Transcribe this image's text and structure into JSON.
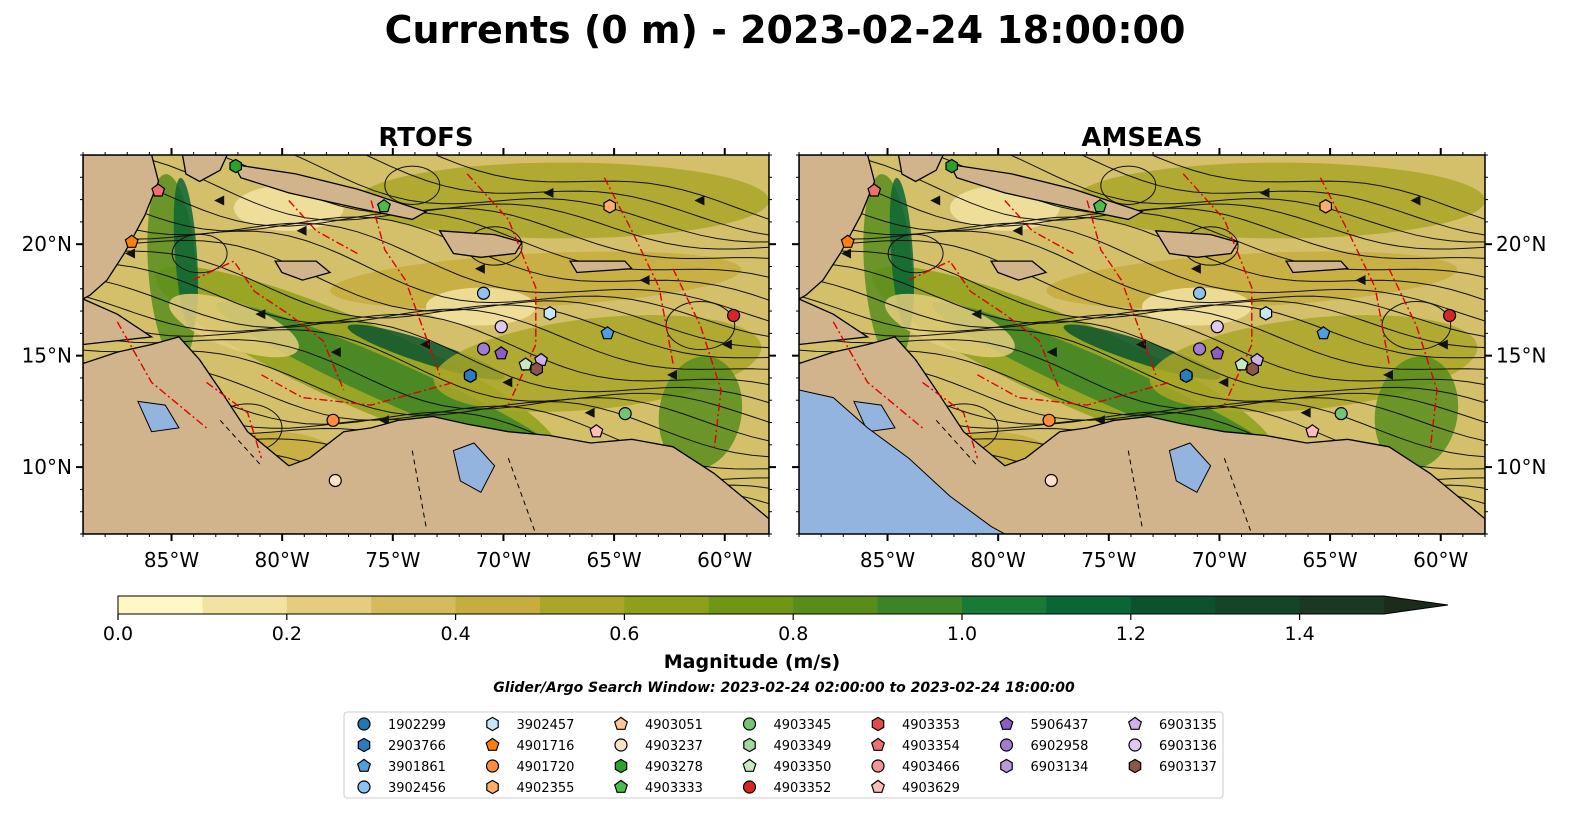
{
  "title": "Currents (0 m) - 2023-02-24 18:00:00",
  "panels": [
    {
      "name": "RTOFS"
    },
    {
      "name": "AMSEAS"
    }
  ],
  "map": {
    "lon_range": [
      -89,
      -58
    ],
    "lat_range": [
      7,
      24
    ],
    "lon_ticks": [
      {
        "value": -85,
        "label": "85°W"
      },
      {
        "value": -80,
        "label": "80°W"
      },
      {
        "value": -75,
        "label": "75°W"
      },
      {
        "value": -70,
        "label": "70°W"
      },
      {
        "value": -65,
        "label": "65°W"
      },
      {
        "value": -60,
        "label": "60°W"
      }
    ],
    "lat_ticks": [
      {
        "value": 20,
        "label": "20°N"
      },
      {
        "value": 15,
        "label": "15°N"
      },
      {
        "value": 10,
        "label": "10°N"
      }
    ],
    "land_color": "#d2b48c",
    "lake_color": "#94b4e0",
    "eez_color": "#e00000"
  },
  "colorbar": {
    "label": "Magnitude (m/s)",
    "ticks": [
      {
        "value": 0.0,
        "label": "0.0"
      },
      {
        "value": 0.2,
        "label": "0.2"
      },
      {
        "value": 0.4,
        "label": "0.4"
      },
      {
        "value": 0.6,
        "label": "0.6"
      },
      {
        "value": 0.8,
        "label": "0.8"
      },
      {
        "value": 1.0,
        "label": "1.0"
      },
      {
        "value": 1.2,
        "label": "1.2"
      },
      {
        "value": 1.4,
        "label": "1.4"
      }
    ],
    "max": 1.5,
    "colors": [
      "#fff8c4",
      "#f2e3a2",
      "#e4cd7e",
      "#d6bb5c",
      "#c6ad3e",
      "#a9a628",
      "#8ea019",
      "#6f9614",
      "#588d1c",
      "#3c8425",
      "#187a35",
      "#0a6635",
      "#0a532e",
      "#154529",
      "#1a3823",
      "#1b2b1c"
    ]
  },
  "search_window": "Glider/Argo Search Window: 2023-02-24 02:00:00 to 2023-02-24 18:00:00",
  "legend": [
    [
      {
        "label": "1902299",
        "color": "#1f77b4",
        "shape": "circle"
      },
      {
        "label": "2903766",
        "color": "#2b7bc0",
        "shape": "hexagon"
      },
      {
        "label": "3901861",
        "color": "#4f9ee0",
        "shape": "pentagon"
      },
      {
        "label": "3902456",
        "color": "#8ec3f0",
        "shape": "circle"
      }
    ],
    [
      {
        "label": "3902457",
        "color": "#c6e6fa",
        "shape": "hexagon"
      },
      {
        "label": "4901716",
        "color": "#ff7f0e",
        "shape": "pentagon"
      },
      {
        "label": "4901720",
        "color": "#fd8d3c",
        "shape": "circle"
      },
      {
        "label": "4902355",
        "color": "#fdae6b",
        "shape": "hexagon"
      }
    ],
    [
      {
        "label": "4903051",
        "color": "#fdc79a",
        "shape": "pentagon"
      },
      {
        "label": "4903237",
        "color": "#fde0c5",
        "shape": "circle"
      },
      {
        "label": "4903278",
        "color": "#2ca02c",
        "shape": "hexagon"
      },
      {
        "label": "4903333",
        "color": "#4cbb4c",
        "shape": "pentagon"
      }
    ],
    [
      {
        "label": "4903345",
        "color": "#74c476",
        "shape": "circle"
      },
      {
        "label": "4903349",
        "color": "#a1d99b",
        "shape": "hexagon"
      },
      {
        "label": "4903350",
        "color": "#c7e9c0",
        "shape": "pentagon"
      },
      {
        "label": "4903352",
        "color": "#d62728",
        "shape": "circle"
      }
    ],
    [
      {
        "label": "4903353",
        "color": "#e34a4a",
        "shape": "hexagon"
      },
      {
        "label": "4903354",
        "color": "#ef6f6f",
        "shape": "pentagon"
      },
      {
        "label": "4903466",
        "color": "#f49494",
        "shape": "circle"
      },
      {
        "label": "4903629",
        "color": "#fbbcbc",
        "shape": "pentagon"
      }
    ],
    [
      {
        "label": "5906437",
        "color": "#8c5dc4",
        "shape": "pentagon"
      },
      {
        "label": "6902958",
        "color": "#a07dd0",
        "shape": "circle"
      },
      {
        "label": "6903134",
        "color": "#b99bdc",
        "shape": "hexagon"
      }
    ],
    [
      {
        "label": "6903135",
        "color": "#cdb1ea",
        "shape": "pentagon"
      },
      {
        "label": "6903136",
        "color": "#e0c8f2",
        "shape": "circle"
      },
      {
        "label": "6903137",
        "color": "#8c564b",
        "shape": "hexagon"
      }
    ]
  ],
  "platforms": [
    {
      "id": "1902299",
      "lon": -71.5,
      "lat": 14.1
    },
    {
      "id": "2903766",
      "lon": -71.5,
      "lat": 14.1
    },
    {
      "id": "3901861",
      "lon": -65.3,
      "lat": 16.0
    },
    {
      "id": "3902456",
      "lon": -70.9,
      "lat": 17.8
    },
    {
      "id": "3902457",
      "lon": -67.9,
      "lat": 16.9
    },
    {
      "id": "4901716",
      "lon": -86.8,
      "lat": 20.1
    },
    {
      "id": "4901720",
      "lon": -77.7,
      "lat": 12.1
    },
    {
      "id": "4902355",
      "lon": -65.2,
      "lat": 21.7
    },
    {
      "id": "4903237",
      "lon": -77.6,
      "lat": 9.4
    },
    {
      "id": "4903278",
      "lon": -82.1,
      "lat": 23.5
    },
    {
      "id": "4903333",
      "lon": -75.4,
      "lat": 21.7
    },
    {
      "id": "4903345",
      "lon": -64.5,
      "lat": 12.4
    },
    {
      "id": "4903350",
      "lon": -69.0,
      "lat": 14.6
    },
    {
      "id": "4903352",
      "lon": -59.6,
      "lat": 16.8
    },
    {
      "id": "4903354",
      "lon": -85.6,
      "lat": 22.4
    },
    {
      "id": "4903629",
      "lon": -65.8,
      "lat": 11.6
    },
    {
      "id": "5906437",
      "lon": -70.1,
      "lat": 15.1
    },
    {
      "id": "6902958",
      "lon": -70.9,
      "lat": 15.3
    },
    {
      "id": "6903135",
      "lon": -68.3,
      "lat": 14.8
    },
    {
      "id": "6903136",
      "lon": -70.1,
      "lat": 16.3
    },
    {
      "id": "6903137",
      "lon": -68.5,
      "lat": 14.4
    }
  ]
}
